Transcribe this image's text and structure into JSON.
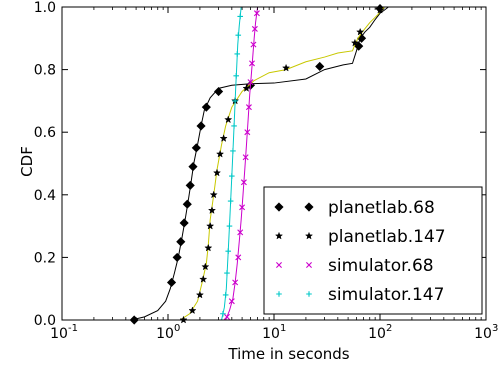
{
  "chart_data": {
    "type": "line",
    "title": "",
    "xlabel": "Time in seconds",
    "ylabel": "CDF",
    "xscale": "log",
    "xlim": [
      0.1,
      1000
    ],
    "ylim": [
      0.0,
      1.0
    ],
    "x_ticks": [
      {
        "value": 0.1,
        "label": "10",
        "exp": "-1"
      },
      {
        "value": 1,
        "label": "10",
        "exp": "0"
      },
      {
        "value": 10,
        "label": "10",
        "exp": "1"
      },
      {
        "value": 100,
        "label": "10",
        "exp": "2"
      },
      {
        "value": 1000,
        "label": "10",
        "exp": "3"
      }
    ],
    "y_ticks": [
      "0.0",
      "0.2",
      "0.4",
      "0.6",
      "0.8",
      "1.0"
    ],
    "grid": false,
    "legend_position": "bottom-right",
    "series": [
      {
        "name": "planetlab.68",
        "color": "#000000",
        "marker": "diamond",
        "points": [
          [
            0.45,
            0.0
          ],
          [
            0.6,
            0.01
          ],
          [
            0.8,
            0.03
          ],
          [
            0.95,
            0.06
          ],
          [
            1.05,
            0.1
          ],
          [
            1.15,
            0.15
          ],
          [
            1.25,
            0.2
          ],
          [
            1.35,
            0.26
          ],
          [
            1.45,
            0.32
          ],
          [
            1.55,
            0.38
          ],
          [
            1.65,
            0.44
          ],
          [
            1.75,
            0.5
          ],
          [
            1.9,
            0.56
          ],
          [
            2.05,
            0.62
          ],
          [
            2.2,
            0.67
          ],
          [
            2.5,
            0.71
          ],
          [
            3.0,
            0.74
          ],
          [
            4.0,
            0.75
          ],
          [
            6.0,
            0.755
          ],
          [
            10.0,
            0.757
          ],
          [
            20.0,
            0.77
          ],
          [
            30.0,
            0.8
          ],
          [
            45.0,
            0.815
          ],
          [
            55.0,
            0.82
          ],
          [
            60.0,
            0.86
          ],
          [
            65.0,
            0.9
          ],
          [
            72.0,
            0.92
          ],
          [
            80.0,
            0.935
          ],
          [
            90.0,
            0.96
          ],
          [
            100.0,
            0.98
          ],
          [
            110.0,
            0.99
          ],
          [
            120.0,
            1.0
          ]
        ],
        "markers": [
          [
            0.48,
            0.0
          ],
          [
            1.08,
            0.12
          ],
          [
            1.22,
            0.2
          ],
          [
            1.32,
            0.25
          ],
          [
            1.42,
            0.31
          ],
          [
            1.52,
            0.37
          ],
          [
            1.62,
            0.43
          ],
          [
            1.72,
            0.49
          ],
          [
            1.85,
            0.55
          ],
          [
            2.05,
            0.62
          ],
          [
            2.3,
            0.68
          ],
          [
            3.0,
            0.73
          ],
          [
            6.0,
            0.75
          ],
          [
            27.0,
            0.81
          ],
          [
            63.0,
            0.875
          ],
          [
            67.0,
            0.9
          ],
          [
            100.0,
            0.995
          ]
        ]
      },
      {
        "name": "planetlab.147",
        "color": "#000000",
        "line_color": "#c8c800",
        "marker": "star",
        "points": [
          [
            1.3,
            0.0
          ],
          [
            1.6,
            0.02
          ],
          [
            1.9,
            0.06
          ],
          [
            2.1,
            0.12
          ],
          [
            2.3,
            0.18
          ],
          [
            2.4,
            0.24
          ],
          [
            2.5,
            0.32
          ],
          [
            2.7,
            0.4
          ],
          [
            2.9,
            0.48
          ],
          [
            3.2,
            0.56
          ],
          [
            3.5,
            0.62
          ],
          [
            4.0,
            0.68
          ],
          [
            5.0,
            0.73
          ],
          [
            6.5,
            0.765
          ],
          [
            9.0,
            0.79
          ],
          [
            13.0,
            0.8
          ],
          [
            20.0,
            0.825
          ],
          [
            30.0,
            0.84
          ],
          [
            40.0,
            0.853
          ],
          [
            55.0,
            0.86
          ],
          [
            58.0,
            0.88
          ],
          [
            62.0,
            0.9
          ],
          [
            68.0,
            0.92
          ],
          [
            80.0,
            0.95
          ],
          [
            95.0,
            0.975
          ],
          [
            110.0,
            1.0
          ]
        ],
        "markers": [
          [
            1.4,
            0.0
          ],
          [
            1.7,
            0.03
          ],
          [
            2.0,
            0.08
          ],
          [
            2.15,
            0.13
          ],
          [
            2.25,
            0.17
          ],
          [
            2.4,
            0.23
          ],
          [
            2.5,
            0.3
          ],
          [
            2.6,
            0.35
          ],
          [
            2.7,
            0.4
          ],
          [
            2.9,
            0.47
          ],
          [
            3.1,
            0.53
          ],
          [
            3.35,
            0.58
          ],
          [
            3.7,
            0.64
          ],
          [
            4.3,
            0.7
          ],
          [
            5.5,
            0.74
          ],
          [
            13.0,
            0.805
          ],
          [
            58.0,
            0.885
          ],
          [
            65.0,
            0.92
          ],
          [
            100.0,
            0.99
          ]
        ]
      },
      {
        "name": "simulator.68",
        "color": "#cc00cc",
        "marker": "x",
        "points": [
          [
            3.5,
            0.0
          ],
          [
            3.8,
            0.03
          ],
          [
            4.1,
            0.07
          ],
          [
            4.3,
            0.12
          ],
          [
            4.5,
            0.18
          ],
          [
            4.7,
            0.25
          ],
          [
            4.9,
            0.32
          ],
          [
            5.1,
            0.4
          ],
          [
            5.3,
            0.48
          ],
          [
            5.5,
            0.56
          ],
          [
            5.7,
            0.64
          ],
          [
            5.9,
            0.72
          ],
          [
            6.1,
            0.78
          ],
          [
            6.3,
            0.84
          ],
          [
            6.5,
            0.9
          ],
          [
            6.7,
            0.95
          ],
          [
            7.0,
            1.0
          ]
        ],
        "markers": [
          [
            3.6,
            0.01
          ],
          [
            4.0,
            0.06
          ],
          [
            4.3,
            0.12
          ],
          [
            4.6,
            0.2
          ],
          [
            4.8,
            0.28
          ],
          [
            5.0,
            0.36
          ],
          [
            5.2,
            0.44
          ],
          [
            5.4,
            0.52
          ],
          [
            5.6,
            0.6
          ],
          [
            5.8,
            0.68
          ],
          [
            6.0,
            0.76
          ],
          [
            6.2,
            0.82
          ],
          [
            6.4,
            0.88
          ],
          [
            6.6,
            0.93
          ],
          [
            6.9,
            0.98
          ]
        ]
      },
      {
        "name": "simulator.147",
        "color": "#00c8c8",
        "marker": "plus",
        "points": [
          [
            3.2,
            0.0
          ],
          [
            3.4,
            0.04
          ],
          [
            3.55,
            0.1
          ],
          [
            3.65,
            0.18
          ],
          [
            3.75,
            0.26
          ],
          [
            3.85,
            0.34
          ],
          [
            3.95,
            0.42
          ],
          [
            4.05,
            0.5
          ],
          [
            4.15,
            0.58
          ],
          [
            4.25,
            0.66
          ],
          [
            4.35,
            0.74
          ],
          [
            4.45,
            0.81
          ],
          [
            4.55,
            0.88
          ],
          [
            4.7,
            0.94
          ],
          [
            4.9,
            1.0
          ]
        ],
        "markers": [
          [
            3.3,
            0.02
          ],
          [
            3.5,
            0.08
          ],
          [
            3.6,
            0.15
          ],
          [
            3.7,
            0.22
          ],
          [
            3.8,
            0.3
          ],
          [
            3.9,
            0.38
          ],
          [
            4.0,
            0.46
          ],
          [
            4.1,
            0.54
          ],
          [
            4.2,
            0.62
          ],
          [
            4.3,
            0.7
          ],
          [
            4.4,
            0.78
          ],
          [
            4.5,
            0.85
          ],
          [
            4.6,
            0.91
          ],
          [
            4.8,
            0.97
          ]
        ]
      }
    ]
  }
}
